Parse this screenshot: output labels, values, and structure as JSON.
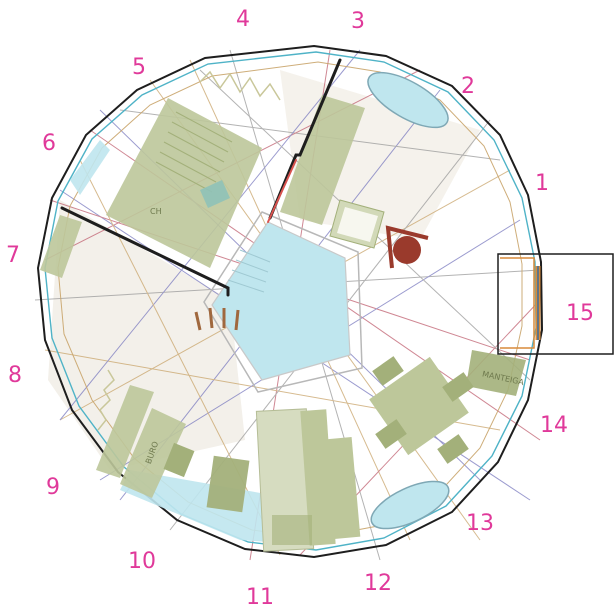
{
  "colors": {
    "label": "#e0399a",
    "furniture": "#bdc79a",
    "furniture_dark": "#a3b07a",
    "water": "#bfe6ee",
    "wall": "#1e1e1e",
    "accent_red": "#9a3a2c",
    "orange": "#d88a3a"
  },
  "segment_labels": [
    "1",
    "2",
    "3",
    "4",
    "5",
    "6",
    "7",
    "8",
    "9",
    "10",
    "11",
    "12",
    "13",
    "14",
    "15"
  ],
  "room_labels": {
    "ch": "CH",
    "buro": "BURO",
    "mantleiga": "MANTEIGA"
  }
}
